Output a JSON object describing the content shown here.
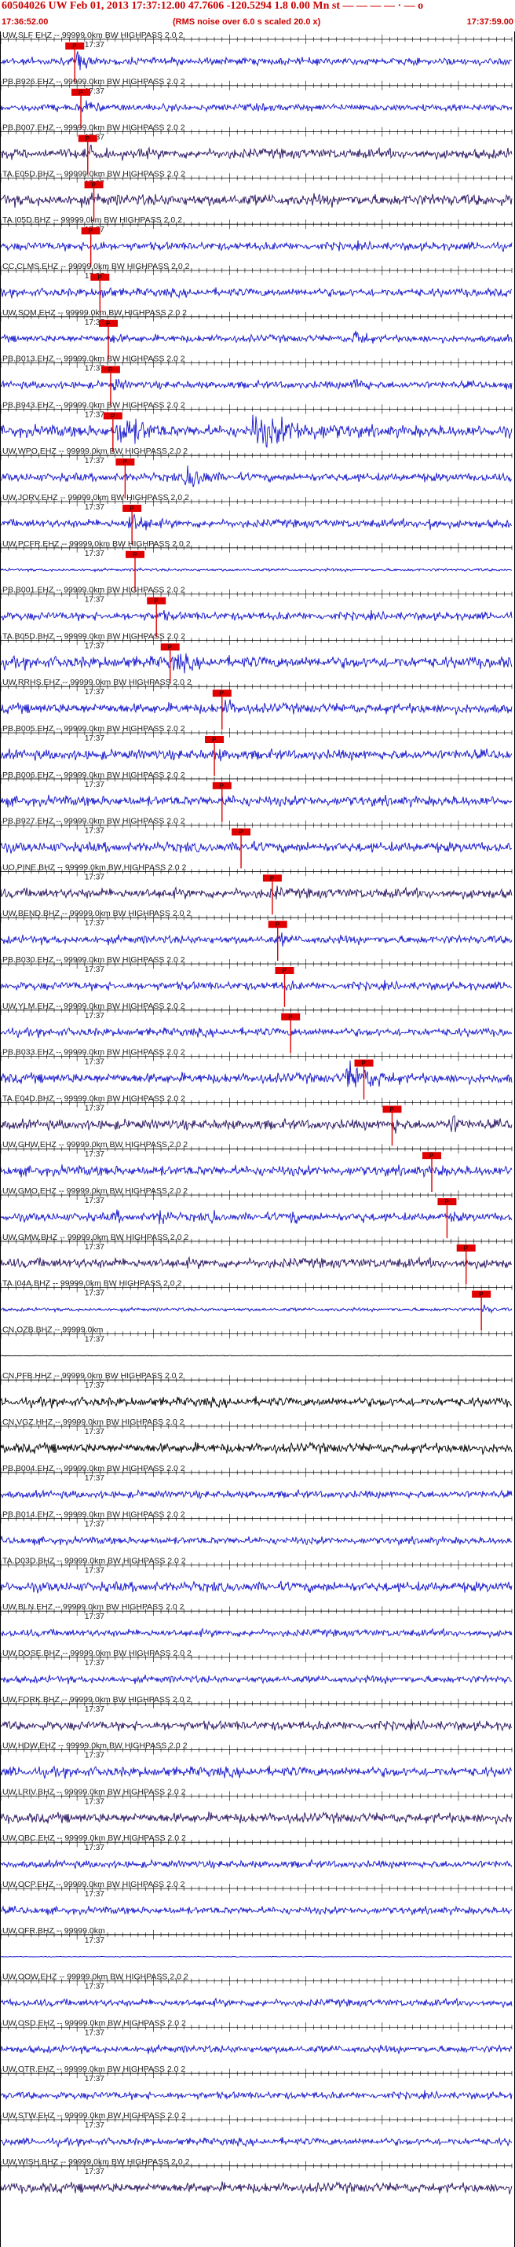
{
  "header": {
    "title": "60504026 UW Feb 01, 2013 17:37:12.00   47.7606 -120.5294  1.8 0.00 Mn st — — —  — · — o",
    "time_start": "17:36:52.00",
    "subtitle": "(RMS noise over 6.0 s scaled 20.0 x)",
    "time_end": "17:37:59.00"
  },
  "colors": {
    "trace_blue": "#1414cc",
    "trace_purple": "#2a1460",
    "trace_black": "#000000",
    "pick": "#e00000",
    "label": "#222222",
    "axis": "#000000"
  },
  "chart_data": {
    "type": "line",
    "x_range_seconds": [
      0,
      67
    ],
    "tick_spacing_seconds": 1,
    "time_label": "17:37",
    "pick_label": "P",
    "traces": [
      {
        "label": "UW.SLF EHZ -- 99999.0km BW  HIGHPASS  2.0  2",
        "color": "blue",
        "amp": 0.22,
        "pick": 9.7,
        "bursts": [
          [
            9.7,
            4.5,
            0.9
          ],
          [
            23.5,
            0.6,
            1.0
          ],
          [
            38.3,
            0.6,
            0.8
          ],
          [
            52.5,
            0.6,
            0.9
          ]
        ]
      },
      {
        "label": "PB.B926.EHZ -- 99999.0km BW  HIGHPASS  2.0  2",
        "color": "blue",
        "amp": 0.22,
        "pick": 10.5,
        "bursts": [
          [
            10.5,
            4.5,
            0.8
          ],
          [
            24.5,
            1.0,
            0.5
          ],
          [
            38.0,
            1.0,
            0.4
          ],
          [
            51.0,
            1.0,
            0.5
          ]
        ]
      },
      {
        "label": "PB.B007.EHZ -- 99999.0km BW  HIGHPASS  2.0  2",
        "color": "purple",
        "amp": 0.3,
        "pick": 11.4,
        "bursts": [
          [
            11.4,
            6.0,
            0.7
          ]
        ]
      },
      {
        "label": "TA.E05D.BHZ -- 99999.0km BW  HIGHPASS  2.0  2",
        "color": "purple",
        "amp": 0.35,
        "pick": 12.2,
        "bursts": [
          [
            12.2,
            5.0,
            0.6
          ]
        ]
      },
      {
        "label": "TA.I05D.BHZ -- 99999.0km BW  HIGHPASS  2.0  2",
        "color": "blue",
        "amp": 0.25,
        "pick": 11.8,
        "bursts": [
          [
            11.8,
            5.0,
            0.7
          ],
          [
            46.5,
            1.5,
            0.5
          ]
        ]
      },
      {
        "label": "CC.CLMS.EHZ -- 99999.0km BW  HIGHPASS  2.0  2",
        "color": "blue",
        "amp": 0.25,
        "pick": 13.0,
        "bursts": [
          [
            13.0,
            6.0,
            0.6
          ],
          [
            39.0,
            3.0,
            0.4
          ]
        ]
      },
      {
        "label": "UW.SQM.EHZ -- 99999.0km BW  HIGHPASS  2.0  2",
        "color": "blue",
        "amp": 0.22,
        "pick": 14.1,
        "bursts": [
          [
            14.1,
            6.0,
            0.5
          ],
          [
            46.0,
            5.0,
            0.9
          ]
        ]
      },
      {
        "label": "PB.B013.EHZ -- 99999.0km BW  HIGHPASS  2.0  2",
        "color": "blue",
        "amp": 0.22,
        "pick": 14.4,
        "bursts": [
          [
            14.4,
            6.0,
            0.6
          ],
          [
            46.0,
            5.0,
            0.8
          ]
        ]
      },
      {
        "label": "PB.B943.EHZ -- 99999.0km BW  HIGHPASS  2.0  2",
        "color": "blue",
        "amp": 0.35,
        "pick": 14.7,
        "bursts": [
          [
            15.0,
            13.0,
            1.2
          ],
          [
            32.5,
            30.0,
            1.1
          ]
        ]
      },
      {
        "label": "UW.WPO.EHZ -- 99999.0km BW  HIGHPASS  2.0  2",
        "color": "blue",
        "amp": 0.25,
        "pick": 16.3,
        "bursts": [
          [
            16.3,
            2.0,
            0.5
          ],
          [
            24.0,
            8.0,
            1.1
          ]
        ]
      },
      {
        "label": "UW.JORV.EHZ -- 99999.0km BW  HIGHPASS  2.0  2",
        "color": "blue",
        "amp": 0.25,
        "pick": 17.2,
        "bursts": [
          [
            16.5,
            8.0,
            0.9
          ],
          [
            55.5,
            4.0,
            0.9
          ]
        ]
      },
      {
        "label": "UW.PCFR.EHZ -- 99999.0km BW  HIGHPASS  2.0  2",
        "color": "blue",
        "amp": 0.08,
        "pick": 17.6,
        "bursts": [
          [
            17.6,
            3.0,
            0.2
          ]
        ]
      },
      {
        "label": "PB.B001.EHZ -- 99999.0km BW  HIGHPASS  2.0  2",
        "color": "blue",
        "amp": 0.25,
        "pick": 20.4,
        "bursts": [
          [
            20.4,
            6.0,
            0.5
          ]
        ]
      },
      {
        "label": "TA.B05D.BHZ -- 99999.0km BW  HIGHPASS  2.0  2",
        "color": "blue",
        "amp": 0.35,
        "pick": 22.2,
        "bursts": [
          [
            22.2,
            10.0,
            0.8
          ]
        ]
      },
      {
        "label": "UW.RRHS.EHZ -- 99999.0km BW  HIGHPASS  2.0  2",
        "color": "blue",
        "amp": 0.3,
        "pick": 29.0,
        "bursts": [
          [
            29.0,
            8.0,
            0.7
          ]
        ]
      },
      {
        "label": "PB.B005.EHZ -- 99999.0km BW  HIGHPASS  2.0  2",
        "color": "blue",
        "amp": 0.3,
        "pick": 28.0,
        "bursts": [
          [
            28.0,
            6.0,
            0.6
          ]
        ]
      },
      {
        "label": "PB.B006.EHZ -- 99999.0km BW  HIGHPASS  2.0  2",
        "color": "blue",
        "amp": 0.3,
        "pick": 29.0,
        "bursts": [
          [
            29.0,
            6.0,
            0.6
          ]
        ]
      },
      {
        "label": "PB.B927.EHZ -- 99999.0km BW  HIGHPASS  2.0  2",
        "color": "blue",
        "amp": 0.3,
        "pick": 31.5,
        "bursts": [
          [
            31.5,
            6.0,
            0.6
          ]
        ]
      },
      {
        "label": "UO.PINE.BHZ -- 99999.0km BW  HIGHPASS  2.0  2",
        "color": "purple",
        "amp": 0.3,
        "pick": 35.6,
        "bursts": [
          [
            35.6,
            5.0,
            0.6
          ]
        ]
      },
      {
        "label": "UW.BEND.BHZ -- 99999.0km BW  HIGHPASS  2.0  2",
        "color": "blue",
        "amp": 0.25,
        "pick": 36.3,
        "bursts": [
          [
            36.3,
            5.0,
            0.6
          ]
        ]
      },
      {
        "label": "PB.B030.EHZ -- 99999.0km BW  HIGHPASS  2.0  2",
        "color": "blue",
        "amp": 0.25,
        "pick": 37.2,
        "bursts": [
          [
            37.2,
            5.0,
            0.5
          ]
        ]
      },
      {
        "label": "UW.YLM.EHZ -- 99999.0km BW  HIGHPASS  2.0  2",
        "color": "blue",
        "amp": 0.25,
        "pick": 38.0,
        "bursts": [
          [
            38.0,
            4.0,
            0.4
          ]
        ]
      },
      {
        "label": "PB.B033.EHZ -- 99999.0km BW  HIGHPASS  2.0  2",
        "color": "blue",
        "amp": 0.3,
        "pick": 47.6,
        "bursts": [
          [
            45.0,
            14.0,
            1.1
          ]
        ]
      },
      {
        "label": "TA.E04D.BHZ -- 99999.0km BW  HIGHPASS  2.0  2",
        "color": "purple",
        "amp": 0.3,
        "pick": 51.3,
        "bursts": [
          [
            51.0,
            5.0,
            0.8
          ],
          [
            58.5,
            5.0,
            1.0
          ]
        ]
      },
      {
        "label": "UW.GHW.EHZ -- 99999.0km BW  HIGHPASS  2.0  2",
        "color": "blue",
        "amp": 0.3,
        "pick": 56.5,
        "bursts": [
          [
            56.5,
            5.0,
            0.6
          ]
        ]
      },
      {
        "label": "UW.GMO.EHZ -- 99999.0km BW  HIGHPASS  2.0  2",
        "color": "blue",
        "amp": 0.25,
        "pick": 58.5,
        "bursts": [
          [
            14.5,
            2.0,
            1.1
          ],
          [
            20.5,
            3.0,
            1.1
          ],
          [
            27.5,
            2.0,
            1.0
          ],
          [
            37.5,
            3.0,
            0.9
          ],
          [
            47.0,
            1.5,
            0.9
          ],
          [
            59.0,
            3.0,
            0.7
          ]
        ]
      },
      {
        "label": "UW.GMW.BHZ -- 99999.0km BW  HIGHPASS  2.0  2",
        "color": "purple",
        "amp": 0.3,
        "pick": 61.0,
        "bursts": [
          [
            61.0,
            4.0,
            0.5
          ]
        ]
      },
      {
        "label": "TA.I04A.BHZ -- 99999.0km BW  HIGHPASS  2.0  2",
        "color": "blue",
        "amp": 0.1,
        "pick": 63.0,
        "bursts": [
          [
            63.0,
            3.0,
            0.5
          ]
        ]
      },
      {
        "label": "CN.OZB.BHZ -- 99999.0km",
        "color": "black",
        "amp": 0.02,
        "bursts": []
      },
      {
        "label": "CN.PFB.HHZ -- 99999.0km BW  HIGHPASS  2.0  2",
        "color": "black",
        "amp": 0.28,
        "bursts": []
      },
      {
        "label": "CN.VGZ.HHZ -- 99999.0km BW  HIGHPASS  2.0  2",
        "color": "black",
        "amp": 0.3,
        "bursts": []
      },
      {
        "label": "PB.B004.EHZ -- 99999.0km BW  HIGHPASS  2.0  2",
        "color": "blue",
        "amp": 0.22,
        "bursts": []
      },
      {
        "label": "PB.B014.EHZ -- 99999.0km BW  HIGHPASS  2.0  2",
        "color": "blue",
        "amp": 0.22,
        "bursts": []
      },
      {
        "label": "TA.D03D.BHZ -- 99999.0km BW  HIGHPASS  2.0  2",
        "color": "blue",
        "amp": 0.3,
        "bursts": []
      },
      {
        "label": "UW.BLN.EHZ -- 99999.0km BW  HIGHPASS  2.0  2",
        "color": "blue",
        "amp": 0.22,
        "bursts": []
      },
      {
        "label": "UW.DOSE.BHZ -- 99999.0km BW  HIGHPASS  2.0  2",
        "color": "blue",
        "amp": 0.22,
        "bursts": []
      },
      {
        "label": "UW.FORK.BHZ -- 99999.0km BW  HIGHPASS  2.0  2",
        "color": "purple",
        "amp": 0.28,
        "bursts": []
      },
      {
        "label": "UW.HDW.EHZ -- 99999.0km BW  HIGHPASS  2.0  2",
        "color": "blue",
        "amp": 0.3,
        "bursts": []
      },
      {
        "label": "UW.LRIV.BHZ -- 99999.0km BW  HIGHPASS  2.0  2",
        "color": "purple",
        "amp": 0.3,
        "bursts": []
      },
      {
        "label": "UW.OBC.EHZ -- 99999.0km BW  HIGHPASS  2.0  2",
        "color": "blue",
        "amp": 0.22,
        "bursts": []
      },
      {
        "label": "UW.OCP.EHZ -- 99999.0km BW  HIGHPASS  2.0  2",
        "color": "blue",
        "amp": 0.22,
        "bursts": []
      },
      {
        "label": "UW.OFR.BHZ -- 99999.0km",
        "color": "blue",
        "amp": 0.02,
        "bursts": []
      },
      {
        "label": "UW.OOW.EHZ -- 99999.0km BW  HIGHPASS  2.0  2",
        "color": "blue",
        "amp": 0.22,
        "bursts": []
      },
      {
        "label": "UW.OSD.EHZ -- 99999.0km BW  HIGHPASS  2.0  2",
        "color": "blue",
        "amp": 0.22,
        "bursts": []
      },
      {
        "label": "UW.OTR.EHZ -- 99999.0km BW  HIGHPASS  2.0  2",
        "color": "blue",
        "amp": 0.22,
        "bursts": []
      },
      {
        "label": "UW.STW.EHZ -- 99999.0km BW  HIGHPASS  2.0  2",
        "color": "blue",
        "amp": 0.22,
        "bursts": []
      },
      {
        "label": "UW.WISH.BHZ -- 99999.0km BW  HIGHPASS  2.0  2",
        "color": "purple",
        "amp": 0.3,
        "bursts": []
      }
    ]
  }
}
